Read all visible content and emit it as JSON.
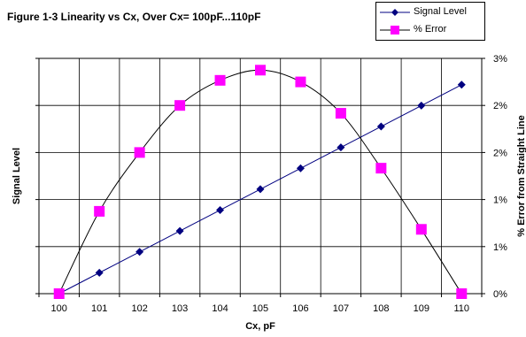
{
  "chart_data": {
    "type": "line",
    "title": "Figure 1-3  Linearity vs Cx, Over Cx= 100pF...110pF",
    "xlabel": "Cx, pF",
    "ylabel_left": "Signal Level",
    "ylabel_right": "% Error from Straight Line",
    "x": [
      100,
      101,
      102,
      103,
      104,
      105,
      106,
      107,
      108,
      109,
      110
    ],
    "x_tick_labels": [
      "100",
      "101",
      "102",
      "103",
      "104",
      "105",
      "106",
      "107",
      "108",
      "109",
      "110"
    ],
    "y_right_tick_labels": [
      "0%",
      "1%",
      "1%",
      "2%",
      "2%",
      "3%"
    ],
    "y_right_range": [
      0,
      3
    ],
    "grid": true,
    "legend": "top-right",
    "series": [
      {
        "name": "Signal Level",
        "axis": "left",
        "color": "#000080",
        "marker": "diamond",
        "values": [
          0.0,
          0.1,
          0.2,
          0.3,
          0.4,
          0.5,
          0.6,
          0.7,
          0.8,
          0.9,
          1.0
        ]
      },
      {
        "name": "% Error",
        "axis": "right",
        "color": "#ff00ff",
        "marker": "square",
        "values": [
          0.0,
          1.05,
          1.8,
          2.4,
          2.72,
          2.85,
          2.7,
          2.3,
          1.6,
          0.82,
          0.0
        ]
      }
    ]
  }
}
